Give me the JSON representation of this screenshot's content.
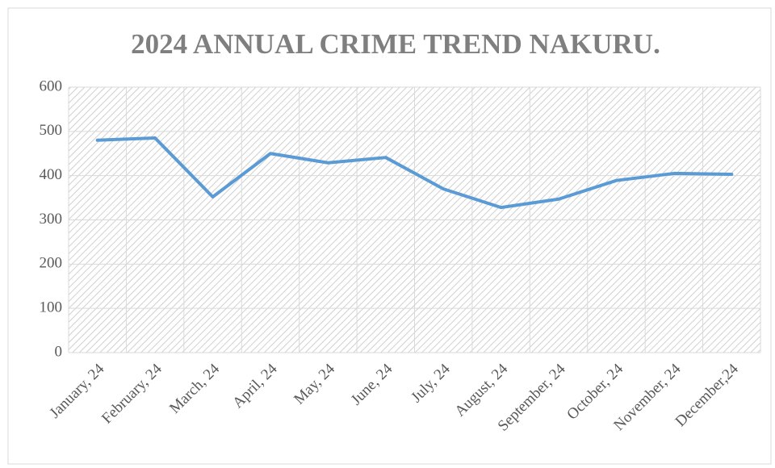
{
  "chart_data": {
    "type": "line",
    "title": "2024 ANNUAL CRIME TREND NAKURU.",
    "categories": [
      "January, 24",
      "February, 24",
      "March, 24",
      "April, 24",
      "May, 24",
      "June, 24",
      "July, 24",
      "August, 24",
      "September, 24",
      "October, 24",
      "November, 24",
      "December,24"
    ],
    "values": [
      480,
      485,
      352,
      450,
      429,
      441,
      370,
      328,
      347,
      389,
      405,
      403
    ],
    "color": "#5b9bd5",
    "ylim": [
      0,
      600
    ],
    "yticks": [
      0,
      100,
      200,
      300,
      400,
      500,
      600
    ],
    "grid": true
  }
}
